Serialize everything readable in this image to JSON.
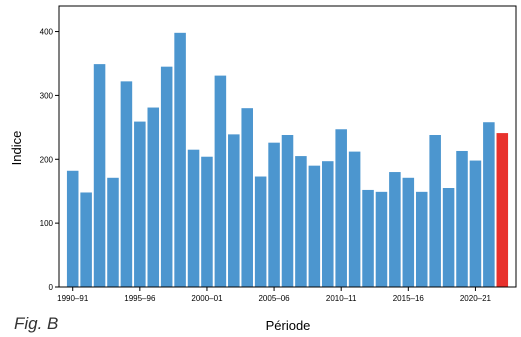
{
  "figure_label": "Fig. B",
  "chart_data": {
    "type": "bar",
    "xlabel": "Période",
    "ylabel": "Indice",
    "ylim": [
      0,
      440
    ],
    "yticks": [
      0,
      100,
      200,
      300,
      400
    ],
    "xticklabels": [
      "1990–91",
      "1995–96",
      "2000–01",
      "2005–06",
      "2010–11",
      "2015–16",
      "2020–21"
    ],
    "xtick_indices": [
      0,
      5,
      10,
      15,
      20,
      25,
      30
    ],
    "grid": false,
    "colors": {
      "default": "#4C96CF",
      "highlight": "#E8312C"
    },
    "highlight_index": 32,
    "categories": [
      "1990–91",
      "1991–92",
      "1992–93",
      "1993–94",
      "1994–95",
      "1995–96",
      "1996–97",
      "1997–98",
      "1998–99",
      "1999–00",
      "2000–01",
      "2001–02",
      "2002–03",
      "2003–04",
      "2004–05",
      "2005–06",
      "2006–07",
      "2007–08",
      "2008–09",
      "2009–10",
      "2010–11",
      "2011–12",
      "2012–13",
      "2013–14",
      "2014–15",
      "2015–16",
      "2016–17",
      "2017–18",
      "2018–19",
      "2019–20",
      "2020–21",
      "2021–22",
      "2022–23"
    ],
    "values": [
      182,
      148,
      349,
      171,
      322,
      259,
      281,
      345,
      398,
      215,
      204,
      331,
      239,
      280,
      173,
      226,
      238,
      205,
      190,
      197,
      247,
      212,
      152,
      149,
      180,
      171,
      149,
      238,
      155,
      213,
      198,
      258,
      241
    ]
  }
}
